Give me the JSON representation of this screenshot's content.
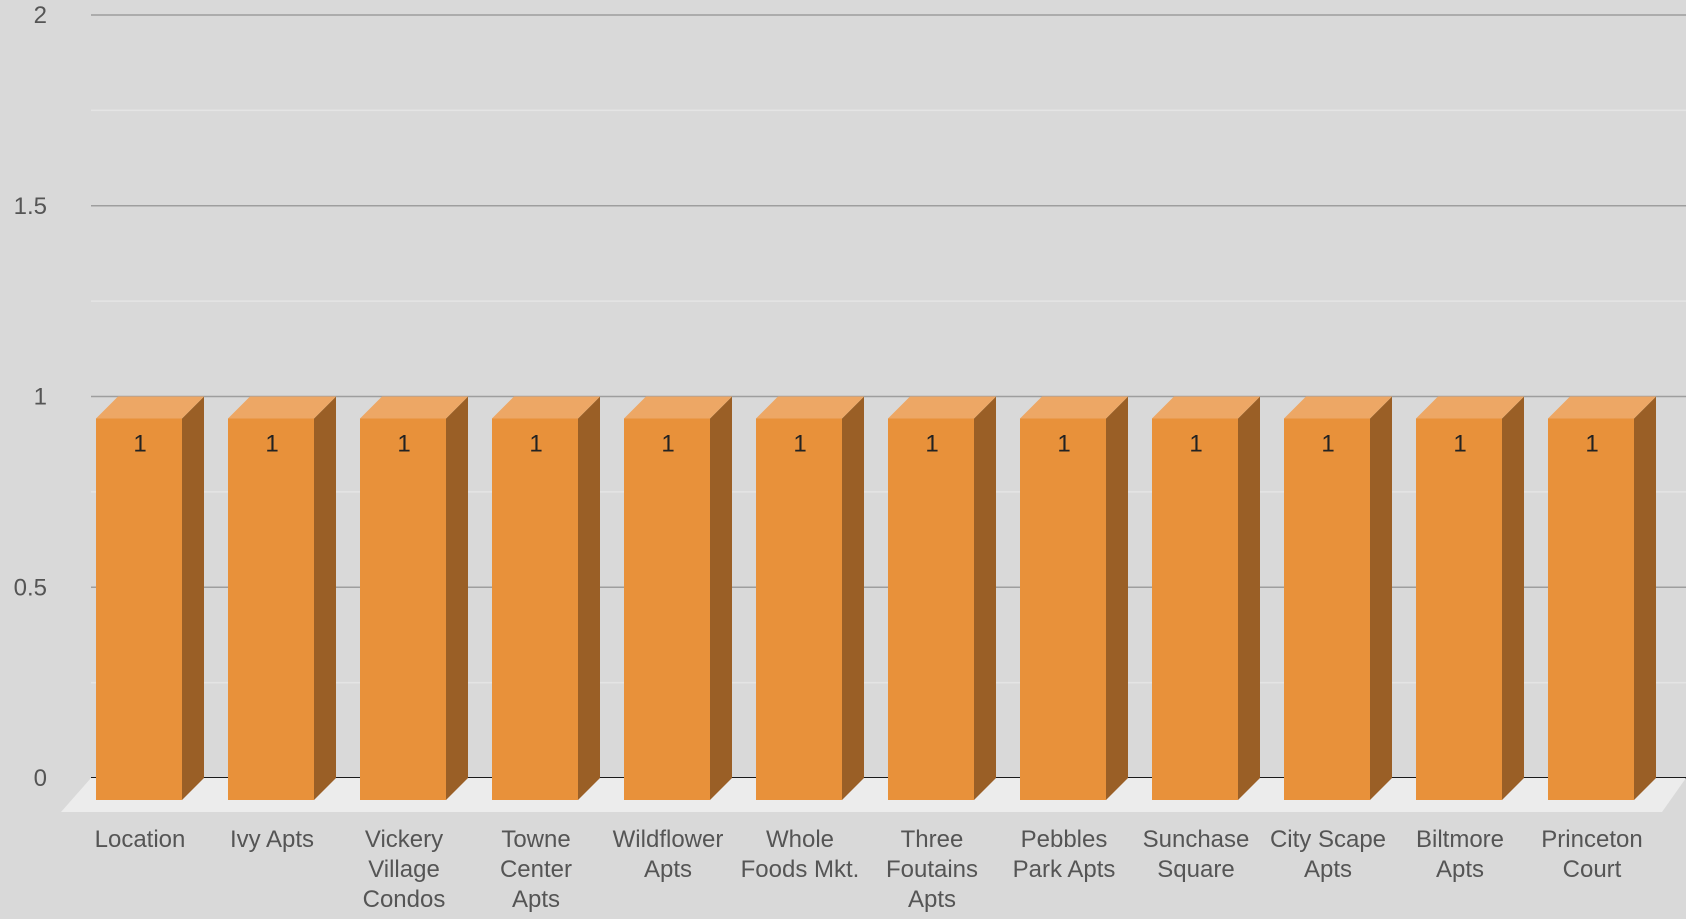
{
  "chart_data": {
    "type": "bar",
    "style": "3d-column",
    "title": "",
    "xlabel": "",
    "ylabel": "",
    "ylim": [
      0,
      2
    ],
    "yticks": [
      {
        "value": 0,
        "label": "0"
      },
      {
        "value": 0.5,
        "label": "0.5"
      },
      {
        "value": 1,
        "label": "1"
      },
      {
        "value": 1.5,
        "label": "1.5"
      },
      {
        "value": 2,
        "label": "2"
      }
    ],
    "grid": true,
    "legend": "none",
    "categories": [
      [
        "Location"
      ],
      [
        "Ivy Apts"
      ],
      [
        "Vickery",
        "Village",
        "Condos"
      ],
      [
        "Towne",
        "Center",
        "Apts"
      ],
      [
        "Wildflower",
        "Apts"
      ],
      [
        "Whole",
        "Foods Mkt."
      ],
      [
        "Three",
        "Foutains",
        "Apts"
      ],
      [
        "Pebbles",
        "Park Apts"
      ],
      [
        "Sunchase",
        "Square"
      ],
      [
        "City Scape",
        "Apts"
      ],
      [
        "Biltmore",
        "Apts"
      ],
      [
        "Princeton",
        "Court"
      ]
    ],
    "series": [
      {
        "values": [
          1,
          1,
          1,
          1,
          1,
          1,
          1,
          1,
          1,
          1,
          1,
          1
        ],
        "data_labels": [
          "1",
          "1",
          "1",
          "1",
          "1",
          "1",
          "1",
          "1",
          "1",
          "1",
          "1",
          "1"
        ]
      }
    ],
    "colors": {
      "background": "#d9d9d9",
      "bar_front": "#e8913a",
      "bar_top": "#eda765",
      "bar_side": "#9a5f26",
      "floor": "#ececec",
      "major_grid": "#9e9e9e",
      "minor_grid": "#e4e4e4",
      "baseline": "#1a1a1a",
      "text": "#555555",
      "label_text": "#222222"
    }
  }
}
